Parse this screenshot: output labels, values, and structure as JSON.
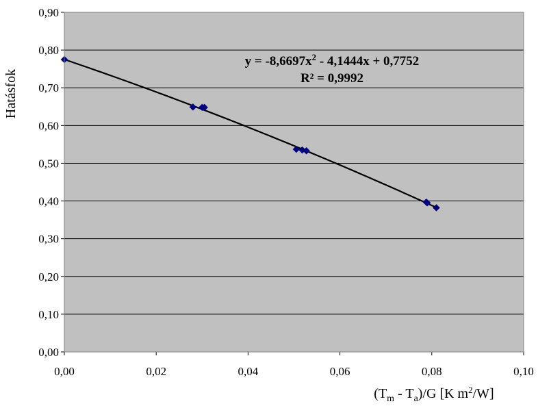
{
  "chart_data": {
    "type": "scatter",
    "title": "",
    "ylabel": "Hatásfok",
    "xlabel_parts": {
      "base": "(T",
      "sub1": "m",
      "mid": " - T",
      "sub2": "a",
      "rest": ")/G [K m",
      "sup": "2",
      "end": "/W]"
    },
    "xlim": [
      0,
      0.1
    ],
    "ylim": [
      0,
      0.9
    ],
    "x_ticks": [
      "0,00",
      "0,02",
      "0,04",
      "0,06",
      "0,08",
      "0,10"
    ],
    "y_ticks": [
      "0,00",
      "0,10",
      "0,20",
      "0,30",
      "0,40",
      "0,50",
      "0,60",
      "0,70",
      "0,80",
      "0,90"
    ],
    "grid": "horizontal",
    "legend": "none",
    "plot_background": "#c0c0c0",
    "marker_color": "#00007f",
    "series": [
      {
        "x": [
          0.0,
          0.028,
          0.03,
          0.0305,
          0.0505,
          0.0518,
          0.0527,
          0.0788,
          0.079,
          0.081
        ],
        "y": [
          0.775,
          0.649,
          0.648,
          0.648,
          0.537,
          0.535,
          0.533,
          0.397,
          0.395,
          0.382
        ]
      }
    ],
    "trendline": {
      "a": -8.6697,
      "b": -4.1444,
      "c": 0.7752,
      "x_range": [
        0,
        0.081
      ],
      "equation_line1": {
        "pre": "y = -8,6697x",
        "sup": "2",
        "post": " - 4,1444x + 0,7752"
      },
      "equation_line2": "R² = 0,9992"
    }
  }
}
